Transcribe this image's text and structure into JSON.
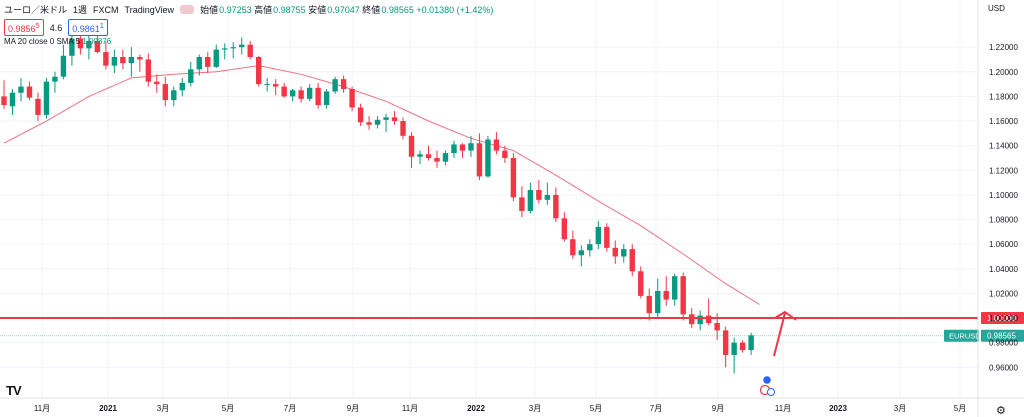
{
  "header": {
    "symbol": "ユーロ／米ドル",
    "interval": "1週",
    "exchange": "FXCM",
    "provider": "TradingView",
    "ohlc": [
      {
        "label": "始値",
        "value": "0.97253"
      },
      {
        "label": "高値",
        "value": "0.98755"
      },
      {
        "label": "安値",
        "value": "0.97047"
      },
      {
        "label": "終値",
        "value": "0.98565"
      }
    ],
    "change": "+0.01380 (+1.42%)",
    "bid": "0.9856",
    "bid_sup": "5",
    "spread": "4.6",
    "ask": "0.9861",
    "ask_sup": "1",
    "indicator": "MA 20 close 0 SMA 5",
    "indicator_value": "1.00876"
  },
  "price_scale": {
    "currency": "USD",
    "ticks": [
      "1.22000",
      "1.20000",
      "1.18000",
      "1.16000",
      "1.14000",
      "1.12000",
      "1.10000",
      "1.08000",
      "1.06000",
      "1.04000",
      "1.02000",
      "1.00000",
      "0.98000",
      "0.96000"
    ],
    "level_tag": "1.00000",
    "price_tag_symbol": "EURUSD",
    "price_tag_value": "0.98565"
  },
  "colors": {
    "up": "#089981",
    "down": "#f23645",
    "sma": "#f0707e",
    "level": "#f23645",
    "current": "#26a69a"
  },
  "chart_data": {
    "type": "candlestick",
    "y_range": [
      0.944,
      1.238
    ],
    "horizontal_level": 1.0,
    "current_price": 0.98565,
    "x_labels": [
      {
        "label": "11月",
        "year": false
      },
      {
        "label": "2021",
        "year": true
      },
      {
        "label": "3月",
        "year": false
      },
      {
        "label": "5月",
        "year": false
      },
      {
        "label": "7月",
        "year": false
      },
      {
        "label": "9月",
        "year": false
      },
      {
        "label": "11月",
        "year": false
      },
      {
        "label": "2022",
        "year": true
      },
      {
        "label": "3月",
        "year": false
      },
      {
        "label": "5月",
        "year": false
      },
      {
        "label": "7月",
        "year": false
      },
      {
        "label": "9月",
        "year": false
      },
      {
        "label": "11月",
        "year": false
      },
      {
        "label": "2023",
        "year": true
      },
      {
        "label": "3月",
        "year": false
      },
      {
        "label": "5月",
        "year": false
      }
    ],
    "candles": [
      [
        1.18,
        1.193,
        1.17,
        1.173
      ],
      [
        1.172,
        1.186,
        1.165,
        1.183
      ],
      [
        1.183,
        1.195,
        1.176,
        1.188
      ],
      [
        1.188,
        1.192,
        1.177,
        1.179
      ],
      [
        1.178,
        1.183,
        1.16,
        1.165
      ],
      [
        1.165,
        1.195,
        1.162,
        1.192
      ],
      [
        1.192,
        1.2,
        1.183,
        1.196
      ],
      [
        1.196,
        1.222,
        1.194,
        1.213
      ],
      [
        1.213,
        1.232,
        1.205,
        1.227
      ],
      [
        1.227,
        1.232,
        1.214,
        1.219
      ],
      [
        1.219,
        1.23,
        1.21,
        1.225
      ],
      [
        1.225,
        1.236,
        1.215,
        1.216
      ],
      [
        1.216,
        1.225,
        1.202,
        1.205
      ],
      [
        1.205,
        1.218,
        1.199,
        1.212
      ],
      [
        1.212,
        1.218,
        1.202,
        1.207
      ],
      [
        1.207,
        1.22,
        1.196,
        1.212
      ],
      [
        1.212,
        1.214,
        1.2,
        1.21
      ],
      [
        1.21,
        1.215,
        1.188,
        1.192
      ],
      [
        1.192,
        1.198,
        1.183,
        1.19
      ],
      [
        1.19,
        1.196,
        1.172,
        1.177
      ],
      [
        1.177,
        1.188,
        1.172,
        1.185
      ],
      [
        1.185,
        1.195,
        1.18,
        1.191
      ],
      [
        1.191,
        1.208,
        1.188,
        1.202
      ],
      [
        1.202,
        1.214,
        1.197,
        1.212
      ],
      [
        1.212,
        1.216,
        1.199,
        1.204
      ],
      [
        1.204,
        1.222,
        1.203,
        1.218
      ],
      [
        1.218,
        1.223,
        1.21,
        1.219
      ],
      [
        1.219,
        1.224,
        1.211,
        1.22
      ],
      [
        1.22,
        1.228,
        1.214,
        1.222
      ],
      [
        1.222,
        1.225,
        1.21,
        1.212
      ],
      [
        1.212,
        1.213,
        1.188,
        1.19
      ],
      [
        1.19,
        1.195,
        1.184,
        1.19
      ],
      [
        1.19,
        1.194,
        1.181,
        1.188
      ],
      [
        1.188,
        1.191,
        1.179,
        1.18
      ],
      [
        1.18,
        1.186,
        1.176,
        1.185
      ],
      [
        1.185,
        1.188,
        1.175,
        1.178
      ],
      [
        1.178,
        1.19,
        1.176,
        1.187
      ],
      [
        1.187,
        1.191,
        1.17,
        1.173
      ],
      [
        1.173,
        1.186,
        1.17,
        1.184
      ],
      [
        1.184,
        1.196,
        1.182,
        1.194
      ],
      [
        1.194,
        1.197,
        1.183,
        1.186
      ],
      [
        1.186,
        1.188,
        1.168,
        1.171
      ],
      [
        1.171,
        1.174,
        1.156,
        1.159
      ],
      [
        1.159,
        1.164,
        1.153,
        1.157
      ],
      [
        1.157,
        1.164,
        1.154,
        1.161
      ],
      [
        1.161,
        1.166,
        1.151,
        1.163
      ],
      [
        1.163,
        1.168,
        1.157,
        1.16
      ],
      [
        1.16,
        1.163,
        1.145,
        1.148
      ],
      [
        1.148,
        1.151,
        1.122,
        1.131
      ],
      [
        1.131,
        1.136,
        1.125,
        1.133
      ],
      [
        1.133,
        1.14,
        1.128,
        1.13
      ],
      [
        1.13,
        1.136,
        1.122,
        1.127
      ],
      [
        1.127,
        1.136,
        1.124,
        1.134
      ],
      [
        1.134,
        1.144,
        1.13,
        1.141
      ],
      [
        1.141,
        1.142,
        1.13,
        1.136
      ],
      [
        1.136,
        1.148,
        1.131,
        1.142
      ],
      [
        1.142,
        1.15,
        1.112,
        1.115
      ],
      [
        1.115,
        1.148,
        1.114,
        1.145
      ],
      [
        1.145,
        1.151,
        1.133,
        1.136
      ],
      [
        1.136,
        1.14,
        1.126,
        1.13
      ],
      [
        1.13,
        1.134,
        1.095,
        1.098
      ],
      [
        1.098,
        1.107,
        1.082,
        1.087
      ],
      [
        1.087,
        1.11,
        1.085,
        1.104
      ],
      [
        1.104,
        1.112,
        1.093,
        1.096
      ],
      [
        1.096,
        1.11,
        1.092,
        1.1
      ],
      [
        1.1,
        1.106,
        1.078,
        1.081
      ],
      [
        1.081,
        1.086,
        1.062,
        1.064
      ],
      [
        1.064,
        1.071,
        1.048,
        1.051
      ],
      [
        1.051,
        1.059,
        1.042,
        1.055
      ],
      [
        1.055,
        1.064,
        1.05,
        1.06
      ],
      [
        1.06,
        1.079,
        1.056,
        1.074
      ],
      [
        1.074,
        1.077,
        1.054,
        1.057
      ],
      [
        1.057,
        1.063,
        1.044,
        1.05
      ],
      [
        1.05,
        1.06,
        1.045,
        1.056
      ],
      [
        1.056,
        1.06,
        1.034,
        1.038
      ],
      [
        1.038,
        1.042,
        1.016,
        1.018
      ],
      [
        1.018,
        1.024,
        0.998,
        1.004
      ],
      [
        1.004,
        1.032,
        1.0,
        1.022
      ],
      [
        1.022,
        1.034,
        1.01,
        1.015
      ],
      [
        1.015,
        1.036,
        1.01,
        1.034
      ],
      [
        1.034,
        1.037,
        0.998,
        1.003
      ],
      [
        1.003,
        1.008,
        0.992,
        0.995
      ],
      [
        0.995,
        1.006,
        0.99,
        1.002
      ],
      [
        1.002,
        1.016,
        0.994,
        0.996
      ],
      [
        0.996,
        1.004,
        0.982,
        0.99
      ],
      [
        0.99,
        0.993,
        0.96,
        0.97
      ],
      [
        0.97,
        0.984,
        0.955,
        0.98
      ],
      [
        0.98,
        0.982,
        0.972,
        0.974
      ],
      [
        0.974,
        0.988,
        0.97,
        0.986
      ]
    ],
    "sma": [
      [
        0,
        1.142
      ],
      [
        5,
        1.16
      ],
      [
        10,
        1.18
      ],
      [
        15,
        1.195
      ],
      [
        20,
        1.198
      ],
      [
        25,
        1.2
      ],
      [
        30,
        1.205
      ],
      [
        35,
        1.198
      ],
      [
        40,
        1.188
      ],
      [
        45,
        1.176
      ],
      [
        50,
        1.16
      ],
      [
        55,
        1.146
      ],
      [
        60,
        1.136
      ],
      [
        65,
        1.116
      ],
      [
        70,
        1.095
      ],
      [
        75,
        1.075
      ],
      [
        80,
        1.052
      ],
      [
        85,
        1.028
      ],
      [
        89,
        1.011
      ]
    ]
  }
}
